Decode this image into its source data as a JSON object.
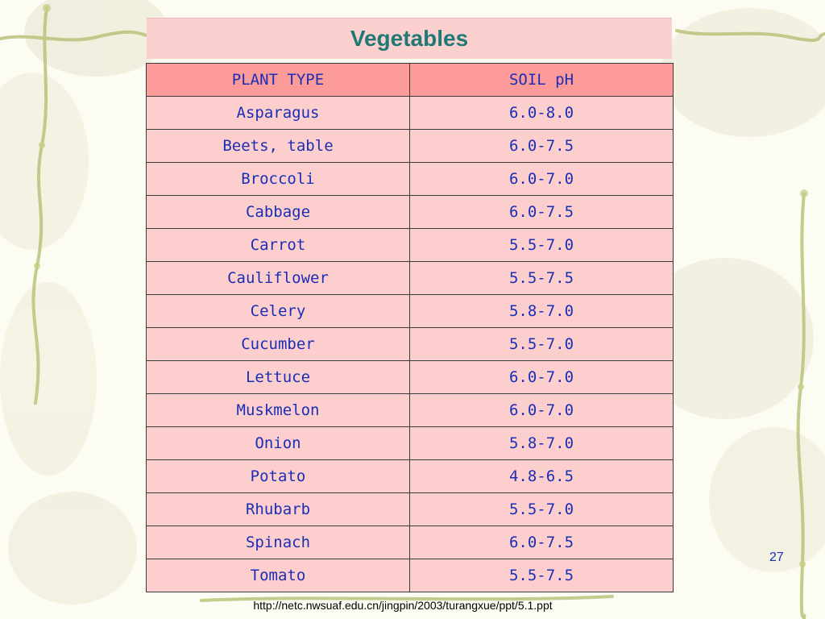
{
  "slide": {
    "title": "Vegetables",
    "page_number": "27",
    "source_url": "http://netc.nwsuaf.edu.cn/jingpin/2003/turangxue/ppt/5.1.ppt"
  },
  "table": {
    "headers": [
      "PLANT TYPE",
      "SOIL pH"
    ],
    "rows": [
      [
        "Asparagus",
        "6.0-8.0"
      ],
      [
        "Beets, table",
        "6.0-7.5"
      ],
      [
        "Broccoli",
        "6.0-7.0"
      ],
      [
        "Cabbage",
        "6.0-7.5"
      ],
      [
        "Carrot",
        "5.5-7.0"
      ],
      [
        "Cauliflower",
        "5.5-7.5"
      ],
      [
        "Celery",
        "5.8-7.0"
      ],
      [
        "Cucumber",
        "5.5-7.0"
      ],
      [
        "Lettuce",
        "6.0-7.0"
      ],
      [
        "Muskmelon",
        "6.0-7.0"
      ],
      [
        "Onion",
        "5.8-7.0"
      ],
      [
        "Potato",
        "4.8-6.5"
      ],
      [
        "Rhubarb",
        "5.5-7.0"
      ],
      [
        "Spinach",
        "6.0-7.5"
      ],
      [
        "Tomato",
        "5.5-7.5"
      ]
    ]
  },
  "colors": {
    "title_text": "#1f7a75",
    "header_fill": "#fd9a9a",
    "cell_fill": "#fdcece",
    "cell_text": "#1a2fb5"
  },
  "decorations": {
    "background_icon": "vine-leaf-pattern"
  }
}
